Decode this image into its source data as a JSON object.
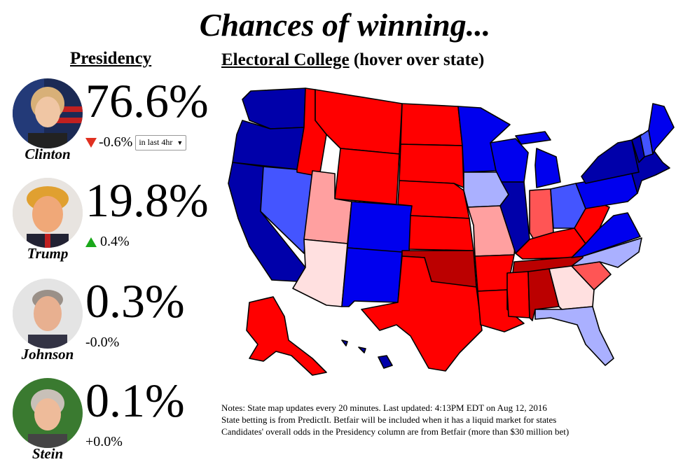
{
  "title": "Chances of winning...",
  "presidency_heading": "Presidency",
  "ec_heading": "Electoral College",
  "ec_hint": "(hover over state)",
  "candidates": [
    {
      "name": "Clinton",
      "pct": "76.6%",
      "change": "-0.6%",
      "direction": "down",
      "period": "in last 4hr",
      "avatar_icon": "clinton-portrait"
    },
    {
      "name": "Trump",
      "pct": "19.8%",
      "change": "0.4%",
      "direction": "up",
      "avatar_icon": "trump-portrait"
    },
    {
      "name": "Johnson",
      "pct": "0.3%",
      "change": "-0.0%",
      "direction": "none",
      "avatar_icon": "johnson-portrait"
    },
    {
      "name": "Stein",
      "pct": "0.1%",
      "change": "+0.0%",
      "direction": "none",
      "avatar_icon": "stein-portrait"
    }
  ],
  "notes": [
    "Notes: State map updates every 20 minutes. Last updated: 4:13PM EDT on Aug 12, 2016",
    "State betting is from PredictIt. Betfair will be included when it has a liquid market for states",
    "Candidates' overall odds in the Presidency column are from Betfair (more than $30 million bet)"
  ],
  "colors": {
    "safe_dem": "#0000ee",
    "dark_dem": "#0000aa",
    "likely_dem": "#4455ff",
    "lean_dem": "#aab0ff",
    "tossup_rep": "#ffe0e0",
    "lean_rep": "#ffa0a0",
    "likely_rep": "#ff5555",
    "safe_rep": "#ff0000",
    "dark_rep": "#bb0000"
  },
  "map": {
    "states": [
      {
        "id": "WA",
        "fill": "dark_dem"
      },
      {
        "id": "OR",
        "fill": "dark_dem"
      },
      {
        "id": "CA",
        "fill": "dark_dem"
      },
      {
        "id": "NV",
        "fill": "likely_dem"
      },
      {
        "id": "ID",
        "fill": "safe_rep"
      },
      {
        "id": "MT",
        "fill": "safe_rep"
      },
      {
        "id": "WY",
        "fill": "safe_rep"
      },
      {
        "id": "UT",
        "fill": "lean_rep"
      },
      {
        "id": "AZ",
        "fill": "tossup_rep"
      },
      {
        "id": "CO",
        "fill": "safe_dem"
      },
      {
        "id": "NM",
        "fill": "safe_dem"
      },
      {
        "id": "ND",
        "fill": "safe_rep"
      },
      {
        "id": "SD",
        "fill": "safe_rep"
      },
      {
        "id": "NE",
        "fill": "safe_rep"
      },
      {
        "id": "KS",
        "fill": "safe_rep"
      },
      {
        "id": "OK",
        "fill": "dark_rep"
      },
      {
        "id": "TX",
        "fill": "safe_rep"
      },
      {
        "id": "MN",
        "fill": "safe_dem"
      },
      {
        "id": "IA",
        "fill": "lean_dem"
      },
      {
        "id": "MO",
        "fill": "lean_rep"
      },
      {
        "id": "AR",
        "fill": "safe_rep"
      },
      {
        "id": "LA",
        "fill": "safe_rep"
      },
      {
        "id": "WI",
        "fill": "safe_dem"
      },
      {
        "id": "IL",
        "fill": "dark_dem"
      },
      {
        "id": "MI",
        "fill": "safe_dem"
      },
      {
        "id": "IN",
        "fill": "likely_rep"
      },
      {
        "id": "OH",
        "fill": "likely_dem"
      },
      {
        "id": "KY",
        "fill": "safe_rep"
      },
      {
        "id": "TN",
        "fill": "dark_rep"
      },
      {
        "id": "MS",
        "fill": "safe_rep"
      },
      {
        "id": "AL",
        "fill": "dark_rep"
      },
      {
        "id": "GA",
        "fill": "tossup_rep"
      },
      {
        "id": "FL",
        "fill": "lean_dem"
      },
      {
        "id": "SC",
        "fill": "likely_rep"
      },
      {
        "id": "NC",
        "fill": "lean_dem"
      },
      {
        "id": "VA",
        "fill": "safe_dem"
      },
      {
        "id": "WV",
        "fill": "safe_rep"
      },
      {
        "id": "PA",
        "fill": "safe_dem"
      },
      {
        "id": "NY",
        "fill": "dark_dem"
      },
      {
        "id": "ME",
        "fill": "safe_dem"
      },
      {
        "id": "NH",
        "fill": "likely_dem"
      },
      {
        "id": "VT",
        "fill": "dark_dem"
      },
      {
        "id": "NE-states",
        "fill": "dark_dem"
      },
      {
        "id": "AK",
        "fill": "safe_rep"
      },
      {
        "id": "HI",
        "fill": "dark_dem"
      }
    ]
  }
}
